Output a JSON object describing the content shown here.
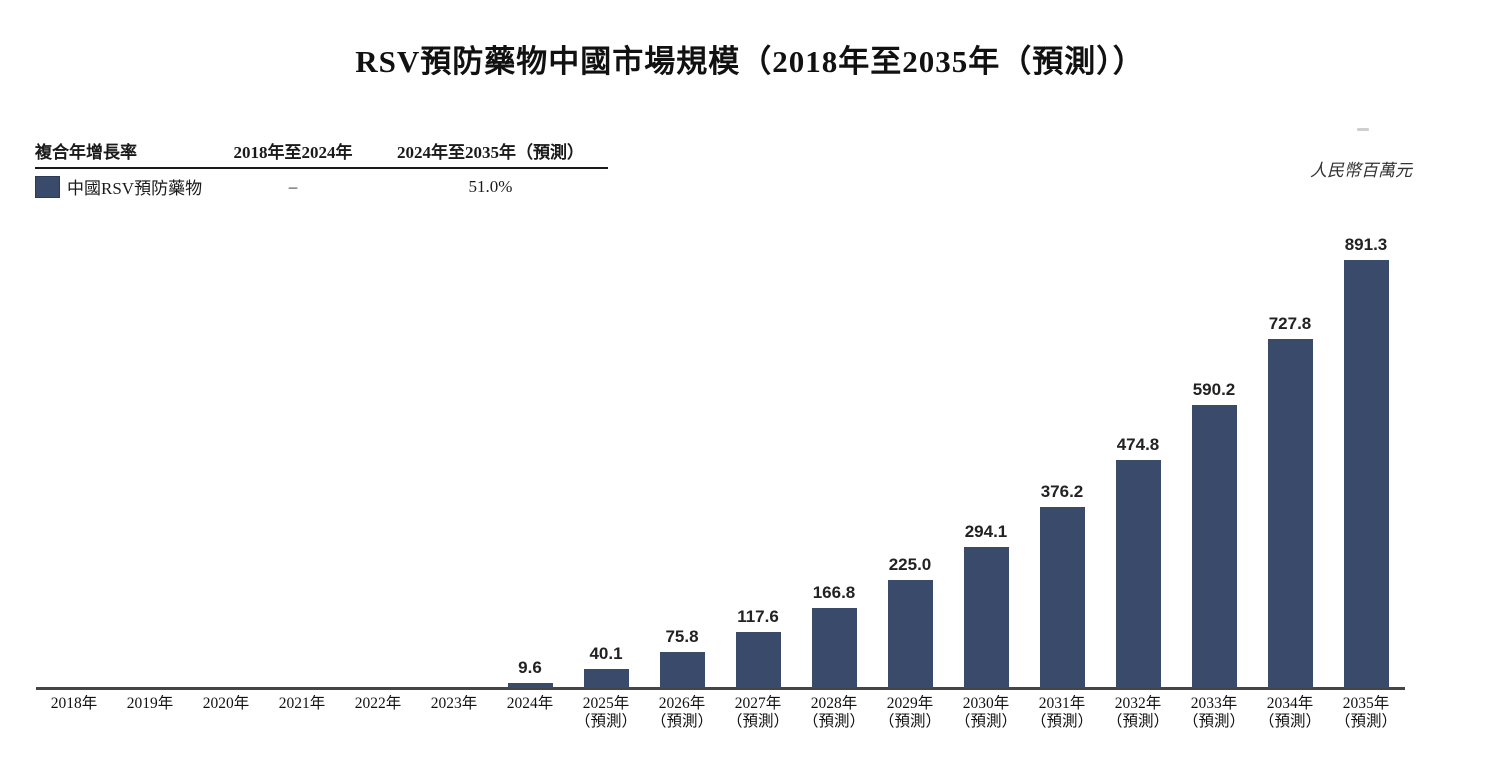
{
  "page": {
    "title": "RSV預防藥物中國市場規模（2018年至2035年（預測））",
    "unit_label": "人民幣百萬元"
  },
  "cagr_table": {
    "col_headers": [
      "複合年增長率",
      "2018年至2024年",
      "2024年至2035年（預測）"
    ],
    "row": {
      "label": "中國RSV預防藥物",
      "swatch_color": "#3a4a6b",
      "cagr_2018_2024": "–",
      "cagr_2024_2035": "51.0%"
    }
  },
  "chart_data": {
    "type": "bar",
    "title": "RSV預防藥物中國市場規模（2018年至2035年（預測））",
    "ylabel": "人民幣百萬元",
    "legend": [
      "中國RSV預防藥物"
    ],
    "legend_position": "top-left",
    "grid": false,
    "bar_color": "#3a4a6b",
    "axis_color": "#454545",
    "ylim": [
      0,
      900
    ],
    "categories": [
      "2018年",
      "2019年",
      "2020年",
      "2021年",
      "2022年",
      "2023年",
      "2024年",
      "2025年（預測）",
      "2026年（預測）",
      "2027年（預測）",
      "2028年（預測）",
      "2029年（預測）",
      "2030年（預測）",
      "2031年（預測）",
      "2032年（預測）",
      "2033年（預測）",
      "2034年（預測）",
      "2035年（預測）"
    ],
    "values": [
      0,
      0,
      0,
      0,
      0,
      0,
      9.6,
      40.1,
      75.8,
      117.6,
      166.8,
      225.0,
      294.1,
      376.2,
      474.8,
      590.2,
      727.8,
      891.3
    ]
  }
}
